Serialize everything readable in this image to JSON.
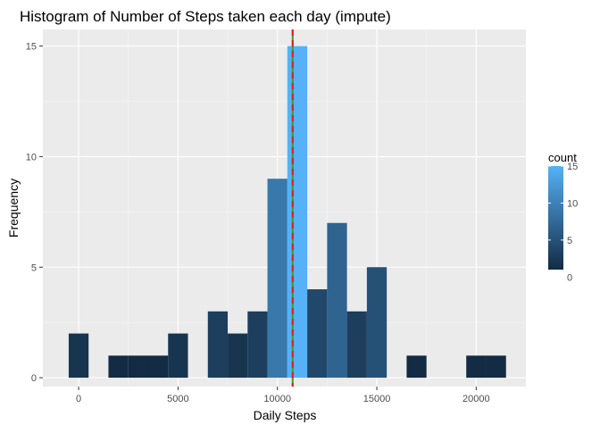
{
  "chart_data": {
    "type": "bar",
    "title": "Histogram of Number of Steps taken each day (impute)",
    "xlabel": "Daily Steps",
    "ylabel": "Frequency",
    "xlim": [
      -1800,
      22500
    ],
    "ylim": [
      -0.4,
      15.75
    ],
    "bin_width": 1000,
    "bins": [
      {
        "center": 0,
        "count": 2
      },
      {
        "center": 2000,
        "count": 1
      },
      {
        "center": 3000,
        "count": 1
      },
      {
        "center": 4000,
        "count": 1
      },
      {
        "center": 5000,
        "count": 2
      },
      {
        "center": 7000,
        "count": 3
      },
      {
        "center": 8000,
        "count": 2
      },
      {
        "center": 9000,
        "count": 3
      },
      {
        "center": 10000,
        "count": 9
      },
      {
        "center": 11000,
        "count": 15
      },
      {
        "center": 12000,
        "count": 4
      },
      {
        "center": 13000,
        "count": 7
      },
      {
        "center": 14000,
        "count": 3
      },
      {
        "center": 15000,
        "count": 5
      },
      {
        "center": 17000,
        "count": 1
      },
      {
        "center": 20000,
        "count": 1
      },
      {
        "center": 21000,
        "count": 1
      }
    ],
    "x_ticks": [
      0,
      5000,
      10000,
      15000,
      20000
    ],
    "x_tick_labels": [
      "0",
      "5000",
      "10000",
      "15000",
      "20000"
    ],
    "y_ticks": [
      0,
      5,
      10,
      15
    ],
    "y_tick_labels": [
      "0",
      "5",
      "10",
      "15"
    ],
    "mean_line": {
      "x": 10766,
      "color": "#2ca02c"
    },
    "median_line": {
      "x": 10766,
      "color": "#e41a1c"
    },
    "fill_scale": {
      "low_color": "#132B43",
      "high_color": "#56B1F7",
      "min": 1,
      "max": 15
    },
    "legend": {
      "title": "count",
      "placement": "right",
      "ticks": [
        0,
        5,
        10,
        15
      ],
      "tick_labels": [
        "0",
        "5",
        "10",
        "15"
      ]
    },
    "panel_background": "#ebebeb",
    "grid": true
  }
}
